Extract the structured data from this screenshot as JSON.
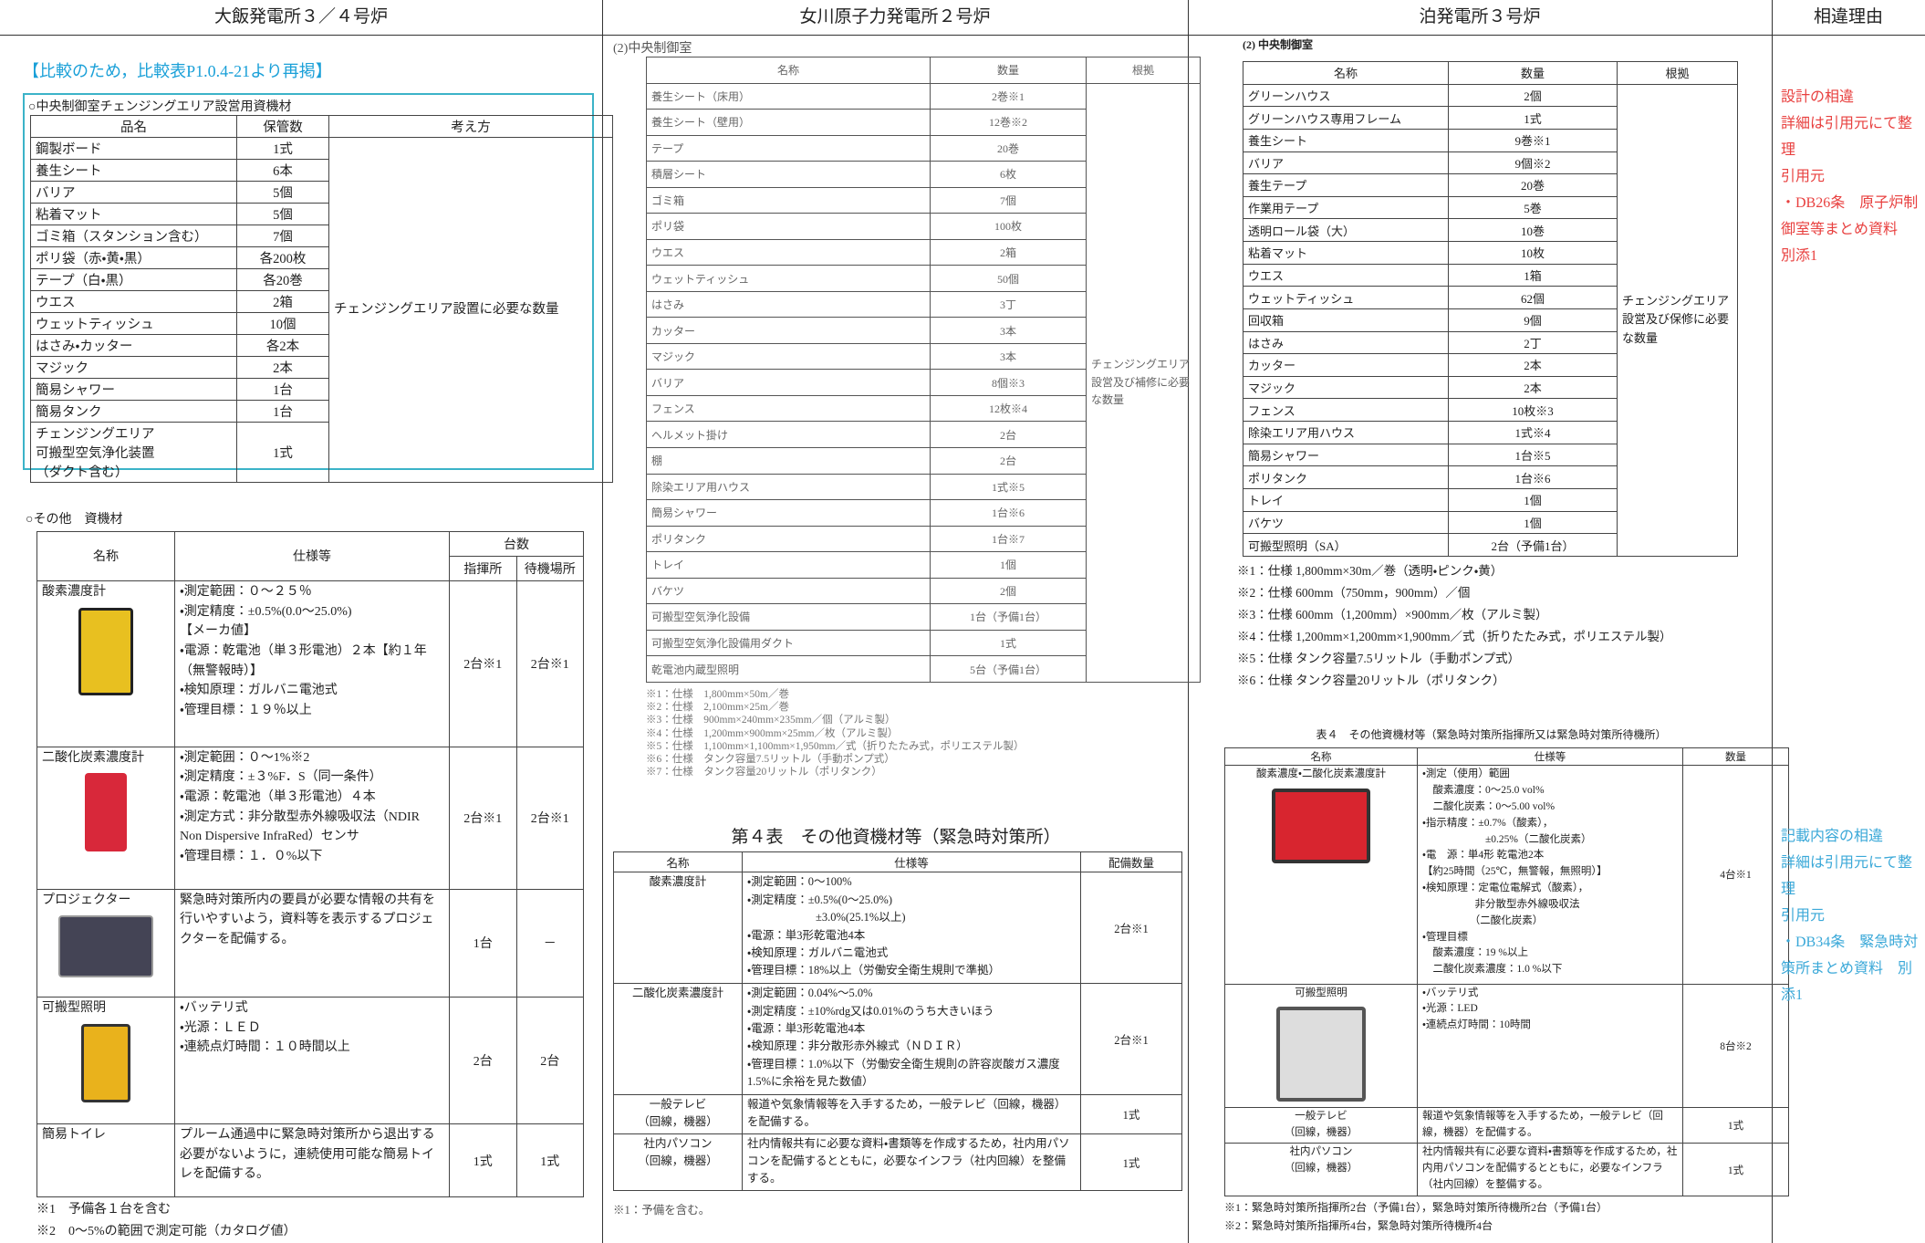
{
  "header": [
    "大飯発電所３／４号炉",
    "女川原子力発電所２号炉",
    "泊発電所３号炉",
    "相違理由"
  ],
  "ohi": {
    "note": "【比較のため，比較表P1.0.4-21より再掲】",
    "table1": {
      "caption": "○中央制御室チェンジングエリア設営用資機材",
      "headers": [
        "品名",
        "保管数",
        "考え方"
      ],
      "rows": [
        [
          "鋼製ボード",
          "1式"
        ],
        [
          "養生シート",
          "6本"
        ],
        [
          "バリア",
          "5個"
        ],
        [
          "粘着マット",
          "5個"
        ],
        [
          "ゴミ箱（スタンション含む）",
          "7個"
        ],
        [
          "ポリ袋（赤・黄・黒）",
          "各200枚"
        ],
        [
          "テープ（白・黒）",
          "各20巻"
        ],
        [
          "ウエス",
          "2箱"
        ],
        [
          "ウェットティッシュ",
          "10個"
        ],
        [
          "はさみ・カッター",
          "各2本"
        ],
        [
          "マジック",
          "2本"
        ],
        [
          "簡易シャワー",
          "1台"
        ],
        [
          "簡易タンク",
          "1台"
        ],
        [
          "チェンジングエリア\n可搬型空気浄化装置\n（ダクト含む）",
          "1式"
        ]
      ],
      "reason": "チェンジングエリア設置に必要な数量"
    },
    "table2": {
      "caption": "○その他　資機材",
      "headers": {
        "name": "名称",
        "spec": "仕様等",
        "count": "台数",
        "sub": [
          "指揮所",
          "待機場所"
        ]
      },
      "rows": [
        {
          "name": "酸素濃度計",
          "specs": [
            "・測定範囲：０～２５％",
            "・測定精度：±0.5%(0.0～25.0%)",
            "【メーカ値】",
            "・電源：乾電池（単３形電池）２本【約１年（無警報時）】",
            "・検知原理：ガルバニ電池式",
            "・管理目標：１９％以上"
          ],
          "qty": [
            "2台※1",
            "2台※1"
          ]
        },
        {
          "name": "二酸化炭素濃度計",
          "specs": [
            "・測定範囲：０～1%※2",
            "・測定精度：±３%F．S（同一条件）",
            "・電源：乾電池（単３形電池）４本",
            "・測定方式：非分散型赤外線吸収法（NDIR Non Dispersive InfraRed）センサ",
            "・管理目標：１．０%以下"
          ],
          "qty": [
            "2台※1",
            "2台※1"
          ]
        },
        {
          "name": "プロジェクター",
          "specs": [
            "緊急時対策所内の要員が必要な情報の共有を行いやすいよう，資料等を表示するプロジェクターを配備する。"
          ],
          "qty": [
            "1台",
            "－"
          ]
        },
        {
          "name": "可搬型照明",
          "specs": [
            "・バッテリ式",
            "・光源：ＬＥＤ",
            "・連続点灯時間：１０時間以上"
          ],
          "qty": [
            "2台",
            "2台"
          ]
        },
        {
          "name": "簡易トイレ",
          "specs": [
            "プルーム通過中に緊急時対策所から退出する必要がないように，連続使用可能な簡易トイレを配備する。"
          ],
          "qty": [
            "1式",
            "1式"
          ]
        }
      ],
      "notes": [
        "※1　予備各１台を含む",
        "※2　0～5%の範囲で測定可能（カタログ値）"
      ]
    }
  },
  "onagawa": {
    "caption": "(2)中央制御室",
    "table1": {
      "headers": [
        "名称",
        "数量",
        "根拠"
      ],
      "rows": [
        [
          "養生シート（床用）",
          "2巻※1"
        ],
        [
          "養生シート（壁用）",
          "12巻※2"
        ],
        [
          "テープ",
          "20巻"
        ],
        [
          "積層シート",
          "6枚"
        ],
        [
          "ゴミ箱",
          "7個"
        ],
        [
          "ポリ袋",
          "100枚"
        ],
        [
          "ウエス",
          "2箱"
        ],
        [
          "ウェットティッシュ",
          "50個"
        ],
        [
          "はさみ",
          "3丁"
        ],
        [
          "カッター",
          "3本"
        ],
        [
          "マジック",
          "3本"
        ],
        [
          "バリア",
          "8個※3"
        ],
        [
          "フェンス",
          "12枚※4"
        ],
        [
          "ヘルメット掛け",
          "2台"
        ],
        [
          "棚",
          "2台"
        ],
        [
          "除染エリア用ハウス",
          "1式※5"
        ],
        [
          "簡易シャワー",
          "1台※6"
        ],
        [
          "ポリタンク",
          "1台※7"
        ],
        [
          "トレイ",
          "1個"
        ],
        [
          "バケツ",
          "2個"
        ],
        [
          "可搬型空気浄化設備",
          "1台（予備1台）"
        ],
        [
          "可搬型空気浄化設備用ダクト",
          "1式"
        ],
        [
          "乾電池内蔵型照明",
          "5台（予備1台）"
        ]
      ],
      "reason": "チェンジングエリア設営及び補修に必要な数量"
    },
    "notes1": [
      "※1：仕様　1,800mm×50m／巻",
      "※2：仕様　2,100mm×25m／巻",
      "※3：仕様　900mm×240mm×235mm／個（アルミ製）",
      "※4：仕様　1,200mm×900mm×25mm／枚（アルミ製）",
      "※5：仕様　1,100mm×1,100mm×1,950mm／式（折りたたみ式，ポリエステル製）",
      "※6：仕様　タンク容量7.5リットル（手動ポンプ式）",
      "※7：仕様　タンク容量20リットル（ポリタンク）"
    ],
    "table2": {
      "title": "第４表　その他資機材等（緊急時対策所）",
      "headers": [
        "名称",
        "仕様等",
        "配備数量"
      ],
      "rows": [
        {
          "name": "酸素濃度計",
          "specs": [
            "・測定範囲：0～100%",
            "・測定精度：±0.5%(0～25.0%)",
            "　　　　　　±3.0%(25.1%以上)",
            "・電源：単3形乾電池4本",
            "・検知原理：ガルバニ電池式",
            "・管理目標：18%以上（労働安全衛生規則で準拠）"
          ],
          "qty": [
            "2台※1"
          ]
        },
        {
          "name": "二酸化炭素濃度計",
          "specs": [
            "・測定範囲：0.04%～5.0%",
            "・測定精度：±10%rdg又は0.01%のうち大きいほう",
            "・電源：単3形乾電池4本",
            "・検知原理：非分散形赤外線式（ＮＤＩＲ）",
            "・管理目標：1.0%以下（労働安全衛生規則の許容炭酸ガス濃度1.5%に余裕を見た数値）"
          ],
          "qty": [
            "2台※1"
          ]
        },
        {
          "name": "一般テレビ\n（回線，機器）",
          "specs": [
            "報道や気象情報等を入手するため，一般テレビ（回線，機器）を配備する。"
          ],
          "qty": [
            "1式"
          ]
        },
        {
          "name": "社内パソコン\n（回線，機器）",
          "specs": [
            "社内情報共有に必要な資料・書類等を作成するため，社内用パソコンを配備するとともに，必要なインフラ（社内回線）を整備する。"
          ],
          "qty": [
            "1式"
          ]
        }
      ],
      "notes": [
        "※1：予備を含む。"
      ]
    }
  },
  "tomari": {
    "caption": "(2) 中央制御室",
    "table1": {
      "headers": [
        "名称",
        "数量",
        "根拠"
      ],
      "rows": [
        [
          "グリーンハウス",
          "2個"
        ],
        [
          "グリーンハウス専用フレーム",
          "1式"
        ],
        [
          "養生シート",
          "9巻※1"
        ],
        [
          "バリア",
          "9個※2"
        ],
        [
          "養生テープ",
          "20巻"
        ],
        [
          "作業用テープ",
          "5巻"
        ],
        [
          "透明ロール袋（大）",
          "10巻"
        ],
        [
          "粘着マット",
          "10枚"
        ],
        [
          "ウエス",
          "1箱"
        ],
        [
          "ウェットティッシュ",
          "62個"
        ],
        [
          "回収箱",
          "9個"
        ],
        [
          "はさみ",
          "2丁"
        ],
        [
          "カッター",
          "2本"
        ],
        [
          "マジック",
          "2本"
        ],
        [
          "フェンス",
          "10枚※3"
        ],
        [
          "除染エリア用ハウス",
          "1式※4"
        ],
        [
          "簡易シャワー",
          "1台※5"
        ],
        [
          "ポリタンク",
          "1台※6"
        ],
        [
          "トレイ",
          "1個"
        ],
        [
          "バケツ",
          "1個"
        ],
        [
          "可搬型照明（SA）",
          "2台（予備1台）"
        ]
      ],
      "reason": "チェンジングエリア設営及び保修に必要な数量"
    },
    "notes1": [
      "※1：仕様 1,800mm×30m／巻（透明・ピンク・黄）",
      "※2：仕様 600mm（750mm，900mm）／個",
      "※3：仕様 600mm（1,200mm）×900mm／枚（アルミ製）",
      "※4：仕様 1,200mm×1,200mm×1,900mm／式（折りたたみ式，ポリエステル製）",
      "※5：仕様 タンク容量7.5リットル（手動ポンプ式）",
      "※6：仕様 タンク容量20リットル（ポリタンク）"
    ],
    "table2": {
      "title": "表４　その他資機材等（緊急時対策所指揮所又は緊急時対策所待機所）",
      "headers": [
        "名称",
        "仕様等",
        "数量"
      ],
      "rows": [
        {
          "name": "酸素濃度・二酸化炭素濃度計",
          "specs": [
            "・測定（使用）範囲",
            "　酸素濃度：0～25.0 vol%",
            "　二酸化炭素：0～5.00 vol%",
            "・指示精度：±0.7%（酸素），",
            "　　　　　　±0.25%（二酸化炭素）",
            "・電　源：単4形 乾電池2本",
            "【約25時間（25℃，無警報，無照明）】",
            "・検知原理：定電位電解式（酸素），",
            "　　　　　非分散型赤外線吸収法",
            "　　　　　（二酸化炭素）",
            "・管理目標",
            "　酸素濃度：19 %以上",
            "　二酸化炭素濃度：1.0 %以下"
          ],
          "qty": [
            "4台※1"
          ]
        },
        {
          "name": "可搬型照明",
          "specs": [
            "・バッテリ式",
            "・光源：LED",
            "・連続点灯時間：10時間"
          ],
          "qty": [
            "8台※2"
          ]
        },
        {
          "name": "一般テレビ\n（回線，機器）",
          "specs": [
            "報道や気象情報等を入手するため，一般テレビ（回線，機器）を配備する。"
          ],
          "qty": [
            "1式"
          ]
        },
        {
          "name": "社内パソコン\n（回線，機器）",
          "specs": [
            "社内情報共有に必要な資料・書類等を作成するため，社内用パソコンを配備するとともに，必要なインフラ（社内回線）を整備する。"
          ],
          "qty": [
            "1式"
          ]
        }
      ],
      "notes": [
        "※1：緊急時対策所指揮所2台（予備1台），緊急時対策所待機所2台（予備1台）",
        "※2：緊急時対策所指揮所4台，緊急時対策所待機所4台"
      ]
    }
  },
  "reasons": [
    [
      "設計の相違",
      "詳細は引用元にて整理",
      "引用元",
      "・DB26条　原子炉制御室等まとめ資料　別添1"
    ],
    [
      "記載内容の相違",
      "詳細は引用元にて整理",
      "引用元",
      "・DB34条　緊急時対策所まとめ資料　別添1"
    ]
  ]
}
